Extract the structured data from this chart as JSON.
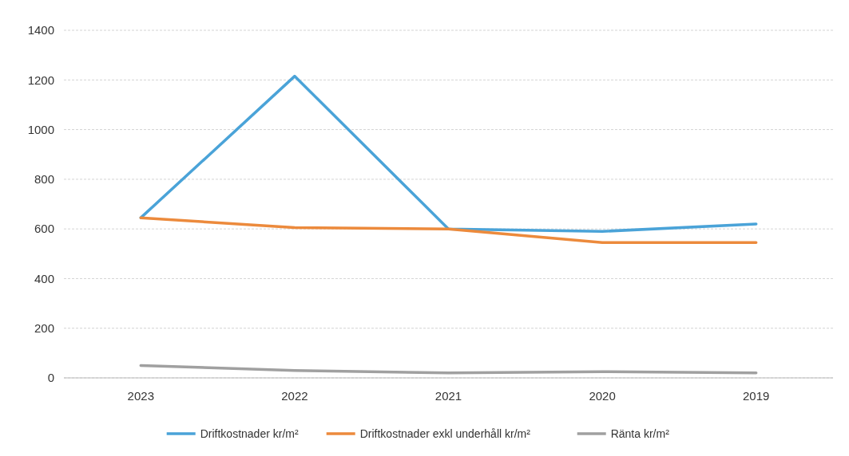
{
  "chart_data": {
    "type": "line",
    "categories": [
      "2023",
      "2022",
      "2021",
      "2020",
      "2019"
    ],
    "series": [
      {
        "name": "Driftkostnader kr/m²",
        "color": "#4aa3d8",
        "values": [
          645,
          1215,
          600,
          590,
          620
        ]
      },
      {
        "name": "Driftkostnader exkl underhåll kr/m²",
        "color": "#ec8a3c",
        "values": [
          645,
          605,
          600,
          545,
          545
        ]
      },
      {
        "name": "Ränta kr/m²",
        "color": "#a0a0a0",
        "values": [
          50,
          30,
          20,
          25,
          20
        ]
      }
    ],
    "ylim": [
      0,
      1400
    ],
    "yticks": [
      0,
      200,
      400,
      600,
      800,
      1000,
      1200,
      1400
    ],
    "grid": "y",
    "legend": "bottom",
    "marker": "none",
    "line_style": "solid"
  }
}
